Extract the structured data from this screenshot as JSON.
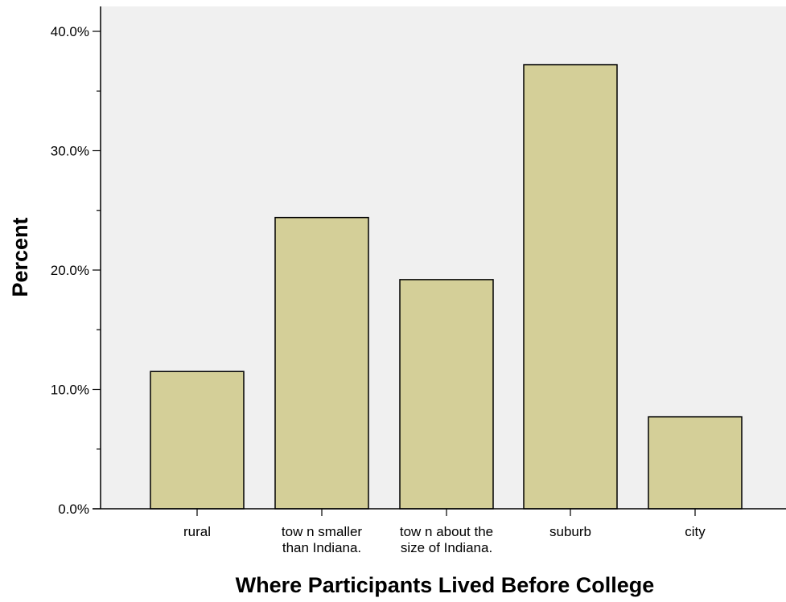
{
  "chart_data": {
    "type": "bar",
    "title": "",
    "xlabel": "Where Participants Lived Before College",
    "ylabel": "Percent",
    "categories": [
      [
        "rural"
      ],
      [
        "tow n smaller",
        "than Indiana."
      ],
      [
        "tow n about the",
        "size of Indiana."
      ],
      [
        "suburb"
      ],
      [
        "city"
      ]
    ],
    "values": [
      11.5,
      24.4,
      19.2,
      37.2,
      7.7
    ],
    "ylim": [
      0,
      42
    ],
    "yticks": [
      0,
      10,
      20,
      30,
      40
    ],
    "ytick_labels": [
      "0.0%",
      "10.0%",
      "20.0%",
      "30.0%",
      "40.0%"
    ],
    "grid": false,
    "legend": "none",
    "colors": {
      "plot_background": "#f0f0f0",
      "bar_fill": "#d4cf98",
      "bar_stroke": "#000000"
    }
  }
}
